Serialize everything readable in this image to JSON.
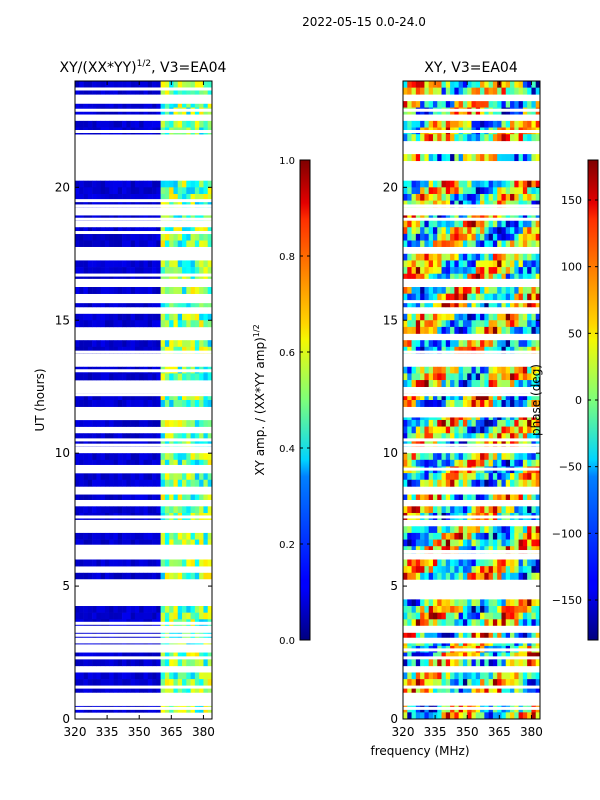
{
  "figure": {
    "suptitle": "2022-05-15 0.0-24.0",
    "xlabel_shared": "frequency (MHz)"
  },
  "chart_data": [
    {
      "type": "heatmap",
      "title_main": "XY/(XX*YY)",
      "title_sup": "1/2",
      "title_rest": ", V3=EA04",
      "xlabel": "",
      "ylabel": "UT (hours)",
      "xlim": [
        320,
        384
      ],
      "ylim": [
        0,
        24
      ],
      "xticks": [
        320,
        335,
        350,
        365,
        380
      ],
      "yticks": [
        0,
        5,
        10,
        15,
        20
      ],
      "colorbar": {
        "label_main": "XY amp. / (XX*YY amp)",
        "label_sup": "1/2",
        "range": [
          0.0,
          1.0
        ],
        "ticks": [
          0.0,
          0.2,
          0.4,
          0.6,
          0.8,
          1.0
        ],
        "tick_labels": [
          "0.0",
          "0.2",
          "0.4",
          "0.6",
          "0.8",
          "1.0"
        ]
      },
      "colormap": "jet",
      "description_values": {
        "low_band_MHz": [
          320,
          361
        ],
        "low_band_level": 0.05,
        "high_band_MHz": [
          361,
          384
        ],
        "high_band_level": 0.45
      },
      "flagged_hours": [
        0.4,
        0.55,
        1.2,
        1.9,
        2.3,
        2.6,
        2.75,
        2.9,
        3.0,
        3.15,
        3.3,
        3.45,
        3.6,
        4.8,
        5.2,
        6.3,
        6.5,
        7.6,
        8.1,
        8.5,
        9.3,
        9.4,
        9.5,
        10.3,
        10.5,
        11.3,
        11.4,
        11.5,
        12.2,
        12.6,
        13.1,
        13.8,
        14.4,
        15.3,
        15.7,
        15.8,
        16.5,
        16.7,
        17.4,
        17.7,
        18.3,
        18.8,
        19.0,
        19.3,
        19.5,
        20.6,
        21.2,
        22.1,
        22.9,
        23.2,
        23.3,
        23.7
      ]
    },
    {
      "type": "heatmap",
      "title_main": "XY, V3=EA04",
      "xlabel": "frequency (MHz)",
      "ylabel": "",
      "xlim": [
        320,
        384
      ],
      "ylim": [
        0,
        24
      ],
      "xticks": [
        320,
        335,
        350,
        365,
        380
      ],
      "yticks": [
        0,
        5,
        10,
        15,
        20
      ],
      "colorbar": {
        "label_main": "phase (deg)",
        "range": [
          -180,
          180
        ],
        "ticks": [
          -150,
          -100,
          -50,
          0,
          50,
          100,
          150
        ],
        "tick_labels": [
          "−150",
          "−100",
          "−50",
          "0",
          "50",
          "100",
          "150"
        ]
      },
      "colormap": "jet",
      "description_values": {
        "phase_range_deg": [
          -180,
          180
        ]
      },
      "flagged_hours": [
        0.4,
        1.2,
        2.3,
        2.6,
        2.9,
        3.0,
        3.3,
        3.45,
        4.8,
        6.3,
        7.6,
        8.5,
        9.4,
        10.3,
        10.5,
        11.4,
        11.5,
        12.2,
        13.8,
        15.3,
        15.7,
        16.5,
        17.7,
        18.8,
        19.0,
        19.3,
        20.6,
        22.1,
        22.9,
        23.3
      ]
    }
  ]
}
